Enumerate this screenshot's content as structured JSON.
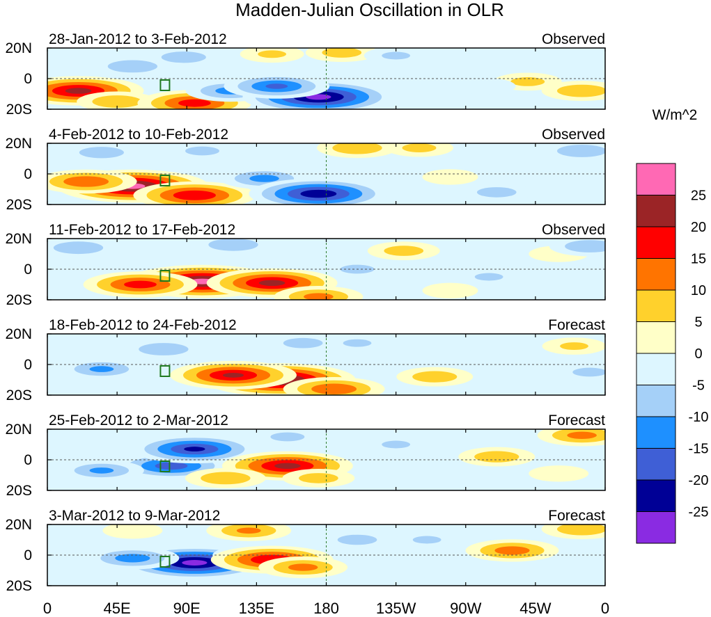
{
  "chart_data": {
    "type": "heatmap",
    "title": "Madden-Julian Oscillation in OLR",
    "units": "W/m^2",
    "x_ticks": [
      "0",
      "45E",
      "90E",
      "135E",
      "180",
      "135W",
      "90W",
      "45W",
      "0"
    ],
    "y_ticks": [
      "20N",
      "0",
      "20S"
    ],
    "colorbar": {
      "levels": [
        "25",
        "20",
        "15",
        "10",
        "5",
        "0",
        "-5",
        "-10",
        "-15",
        "-20",
        "-25"
      ],
      "colors": [
        "#ff69b4",
        "#9b2426",
        "#ff0000",
        "#ff7400",
        "#ffd12c",
        "#ffffc8",
        "#ddf6ff",
        "#a5d0f8",
        "#1e90ff",
        "#3f5fd6",
        "#000096",
        "#8a2be2"
      ]
    },
    "panels": [
      {
        "period": "28-Jan-2012 to 3-Feb-2012",
        "kind": "Observed",
        "anomalies": [
          {
            "lon": 20,
            "lat": -8,
            "value": 22
          },
          {
            "lon": 45,
            "lat": -15,
            "value": 10
          },
          {
            "lon": 95,
            "lat": -16,
            "value": 18
          },
          {
            "lon": 55,
            "lat": 8,
            "value": -10
          },
          {
            "lon": 88,
            "lat": 14,
            "value": -9
          },
          {
            "lon": 118,
            "lat": -8,
            "value": -12
          },
          {
            "lon": 175,
            "lat": -12,
            "value": -27
          },
          {
            "lon": 148,
            "lat": -5,
            "value": -16
          },
          {
            "lon": 145,
            "lat": 16,
            "value": 6
          },
          {
            "lon": 190,
            "lat": 17,
            "value": 8
          },
          {
            "lon": 225,
            "lat": 15,
            "value": -6
          },
          {
            "lon": 310,
            "lat": -2,
            "value": 7
          },
          {
            "lon": 345,
            "lat": -8,
            "value": 10
          },
          {
            "lon": 250,
            "lat": 4,
            "value": -3
          },
          {
            "lon": 283,
            "lat": -5,
            "value": -5
          }
        ]
      },
      {
        "period": "4-Feb-2012 to 10-Feb-2012",
        "kind": "Observed",
        "anomalies": [
          {
            "lon": 55,
            "lat": -8,
            "value": 27
          },
          {
            "lon": 95,
            "lat": -14,
            "value": 20
          },
          {
            "lon": 25,
            "lat": -5,
            "value": 15
          },
          {
            "lon": 35,
            "lat": 14,
            "value": -9
          },
          {
            "lon": 100,
            "lat": 15,
            "value": -7
          },
          {
            "lon": 140,
            "lat": -3,
            "value": -12
          },
          {
            "lon": 175,
            "lat": -13,
            "value": -24
          },
          {
            "lon": 200,
            "lat": 17,
            "value": 10
          },
          {
            "lon": 240,
            "lat": 17,
            "value": 7
          },
          {
            "lon": 290,
            "lat": -12,
            "value": -8
          },
          {
            "lon": 345,
            "lat": 15,
            "value": -10
          },
          {
            "lon": 260,
            "lat": -2,
            "value": 4
          },
          {
            "lon": 315,
            "lat": 5,
            "value": -4
          }
        ]
      },
      {
        "period": "11-Feb-2012 to 17-Feb-2012",
        "kind": "Observed",
        "anomalies": [
          {
            "lon": 100,
            "lat": -8,
            "value": 27
          },
          {
            "lon": 145,
            "lat": -9,
            "value": 22
          },
          {
            "lon": 60,
            "lat": -10,
            "value": 18
          },
          {
            "lon": 175,
            "lat": -18,
            "value": 12
          },
          {
            "lon": 20,
            "lat": 14,
            "value": -10
          },
          {
            "lon": 120,
            "lat": 16,
            "value": -10
          },
          {
            "lon": 230,
            "lat": 12,
            "value": 8
          },
          {
            "lon": 200,
            "lat": 0,
            "value": -7
          },
          {
            "lon": 285,
            "lat": -5,
            "value": -6
          },
          {
            "lon": 330,
            "lat": 10,
            "value": 5
          },
          {
            "lon": 350,
            "lat": 15,
            "value": -10
          },
          {
            "lon": 260,
            "lat": -14,
            "value": 4
          }
        ]
      },
      {
        "period": "18-Feb-2012 to 24-Feb-2012",
        "kind": "Forecast",
        "anomalies": [
          {
            "lon": 150,
            "lat": -10,
            "value": 27
          },
          {
            "lon": 120,
            "lat": -7,
            "value": 21
          },
          {
            "lon": 185,
            "lat": -16,
            "value": 15
          },
          {
            "lon": 35,
            "lat": -3,
            "value": -11
          },
          {
            "lon": 75,
            "lat": 10,
            "value": -10
          },
          {
            "lon": 165,
            "lat": 14,
            "value": -8
          },
          {
            "lon": 200,
            "lat": 14,
            "value": -6
          },
          {
            "lon": 250,
            "lat": -8,
            "value": 9
          },
          {
            "lon": 290,
            "lat": 12,
            "value": -5
          },
          {
            "lon": 340,
            "lat": 12,
            "value": 6
          },
          {
            "lon": 350,
            "lat": -5,
            "value": -7
          }
        ]
      },
      {
        "period": "25-Feb-2012 to 2-Mar-2012",
        "kind": "Forecast",
        "anomalies": [
          {
            "lon": 80,
            "lat": -4,
            "value": -18
          },
          {
            "lon": 35,
            "lat": -7,
            "value": -11
          },
          {
            "lon": 95,
            "lat": 7,
            "value": -21
          },
          {
            "lon": 155,
            "lat": -4,
            "value": 22
          },
          {
            "lon": 115,
            "lat": -12,
            "value": 10
          },
          {
            "lon": 175,
            "lat": -12,
            "value": 8
          },
          {
            "lon": 155,
            "lat": 15,
            "value": -7
          },
          {
            "lon": 225,
            "lat": 10,
            "value": -6
          },
          {
            "lon": 290,
            "lat": 2,
            "value": 9
          },
          {
            "lon": 345,
            "lat": 16,
            "value": 12
          },
          {
            "lon": 330,
            "lat": -9,
            "value": 5
          }
        ]
      },
      {
        "period": "3-Mar-2012 to 9-Mar-2012",
        "kind": "Forecast",
        "anomalies": [
          {
            "lon": 95,
            "lat": -5,
            "value": -27
          },
          {
            "lon": 55,
            "lat": -2,
            "value": -13
          },
          {
            "lon": 130,
            "lat": 0,
            "value": -8
          },
          {
            "lon": 145,
            "lat": -3,
            "value": 20
          },
          {
            "lon": 165,
            "lat": -8,
            "value": 12
          },
          {
            "lon": 130,
            "lat": 16,
            "value": 11
          },
          {
            "lon": 55,
            "lat": 16,
            "value": 5
          },
          {
            "lon": 200,
            "lat": 10,
            "value": -8
          },
          {
            "lon": 245,
            "lat": 10,
            "value": -6
          },
          {
            "lon": 300,
            "lat": 3,
            "value": 13
          },
          {
            "lon": 345,
            "lat": 17,
            "value": 10
          },
          {
            "lon": 260,
            "lat": -12,
            "value": -5
          }
        ]
      }
    ]
  }
}
